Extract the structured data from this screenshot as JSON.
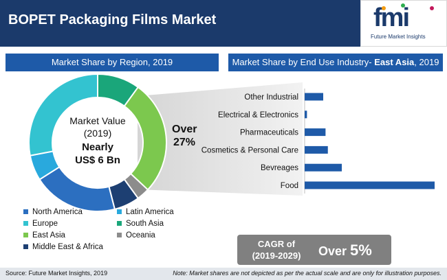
{
  "header": {
    "title": "BOPET Packaging Films Market"
  },
  "logo": {
    "letters": "fmi",
    "subtitle": "Future Market Insights"
  },
  "left_band": {
    "label": "Market Share by Region, 2019"
  },
  "right_band": {
    "label_prefix": "Market Share by End Use Industry- ",
    "label_bold": "East Asia",
    "label_suffix": ", 2019"
  },
  "donut_center": {
    "line1": "Market Value",
    "line2": "(2019)",
    "line3": "Nearly",
    "line4": "US$ 6 Bn"
  },
  "callout": {
    "line1": "Over",
    "line2": "27%"
  },
  "cagr": {
    "label_line1": "CAGR of",
    "label_line2": "(2019-2029)",
    "value_prefix": "Over ",
    "value": "5%"
  },
  "footer": {
    "source": "Source: Future Market Insights, 2019",
    "note": "Note: Market shares are not depicted as per the actual scale and are only for illustration purposes."
  },
  "chart_data": [
    {
      "type": "pie",
      "subtype": "donut",
      "title": "Market Share by Region, 2019",
      "slices": [
        {
          "label": "South Asia",
          "value": 10,
          "color": "#1aa67a"
        },
        {
          "label": "East Asia",
          "value": 27,
          "color": "#7cc84e"
        },
        {
          "label": "Oceania",
          "value": 3,
          "color": "#8c8c8c"
        },
        {
          "label": "Middle East & Africa",
          "value": 6,
          "color": "#1d3f72"
        },
        {
          "label": "North America",
          "value": 20,
          "color": "#2c6fc0"
        },
        {
          "label": "Latin America",
          "value": 6,
          "color": "#29a9dd"
        },
        {
          "label": "Europe",
          "value": 28,
          "color": "#33c3d0"
        }
      ],
      "legend": [
        {
          "label": "North America",
          "color": "#2c6fc0"
        },
        {
          "label": "Latin America",
          "color": "#29a9dd"
        },
        {
          "label": "Europe",
          "color": "#33c3d0"
        },
        {
          "label": "South Asia",
          "color": "#1aa67a"
        },
        {
          "label": "East Asia",
          "color": "#7cc84e"
        },
        {
          "label": "Oceania",
          "color": "#8c8c8c"
        },
        {
          "label": "Middle East & Africa",
          "color": "#1d3f72"
        }
      ],
      "legend_placement": "bottom"
    },
    {
      "type": "bar",
      "orientation": "horizontal",
      "title": "Market Share by End Use Industry- East Asia, 2019",
      "categories": [
        "Other Industrial",
        "Electrical & Electronics",
        "Pharmaceuticals",
        "Cosmetics & Personal Care",
        "Bevreages",
        "Food"
      ],
      "values": [
        4,
        0.5,
        4.5,
        5,
        8,
        28
      ],
      "color": "#1e5aa8",
      "grid": false,
      "xlim": [
        0,
        28
      ]
    }
  ]
}
